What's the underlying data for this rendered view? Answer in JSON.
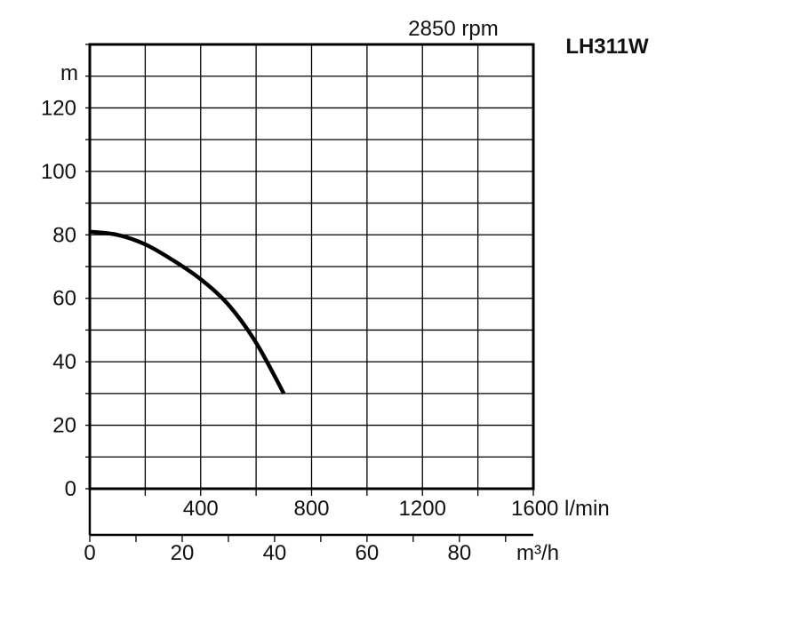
{
  "chart_data": {
    "type": "line",
    "title": "LH311W",
    "subtitle": "2850 rpm",
    "ylabel": "m",
    "x_unit_primary": "m³/h",
    "x_unit_secondary": "l/min",
    "xlim": [
      0,
      96
    ],
    "ylim": [
      0,
      140
    ],
    "y_ticks": [
      0,
      20,
      40,
      60,
      80,
      100,
      120
    ],
    "x_ticks": [
      0,
      20,
      40,
      60,
      80
    ],
    "secondary_ticks": [
      {
        "value": 400,
        "label": "400"
      },
      {
        "value": 800,
        "label": "800"
      },
      {
        "value": 1200,
        "label": "1200"
      },
      {
        "value": 1600,
        "label": "1600 l/min"
      }
    ],
    "grid": true,
    "series": [
      {
        "color": "#000000",
        "x": [
          0,
          6,
          12,
          18,
          24,
          30,
          36,
          42
        ],
        "y": [
          81,
          80,
          77,
          72,
          66,
          58,
          46,
          30
        ]
      }
    ]
  }
}
